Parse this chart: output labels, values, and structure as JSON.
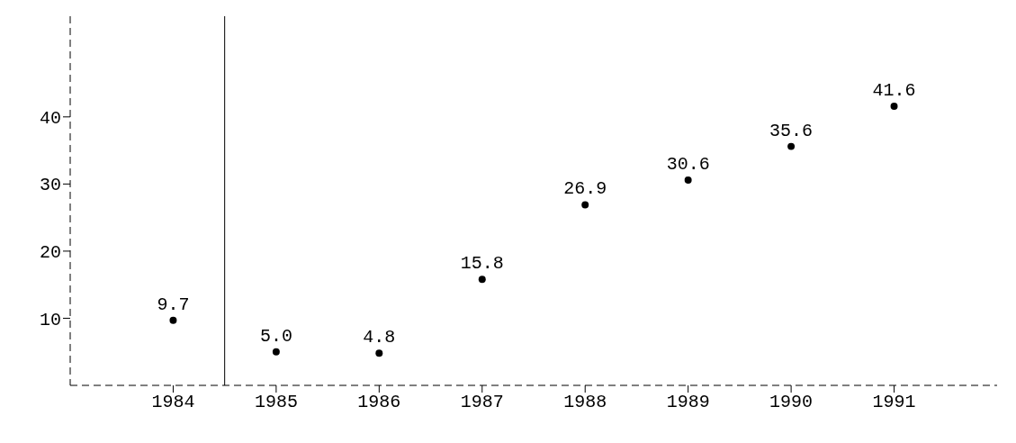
{
  "chart_data": {
    "type": "scatter",
    "x": [
      1984,
      1985,
      1986,
      1987,
      1988,
      1989,
      1990,
      1991
    ],
    "values": [
      9.7,
      5.0,
      4.8,
      15.8,
      26.9,
      30.6,
      35.6,
      41.6
    ],
    "value_labels": [
      "9.7",
      "5.0",
      "4.8",
      "15.8",
      "26.9",
      "30.6",
      "35.6",
      "41.6"
    ],
    "color": "#000000",
    "marker": "circle",
    "xlim": [
      1983,
      1992
    ],
    "xticks": [
      1984,
      1985,
      1986,
      1987,
      1988,
      1989,
      1990,
      1991
    ],
    "ylim": [
      0,
      55
    ],
    "yticks": [
      10,
      20,
      30,
      40
    ],
    "ref_lines": [
      {
        "axis": "x",
        "value": 1984.5,
        "color": "#000000",
        "line_style": "solid"
      }
    ]
  }
}
